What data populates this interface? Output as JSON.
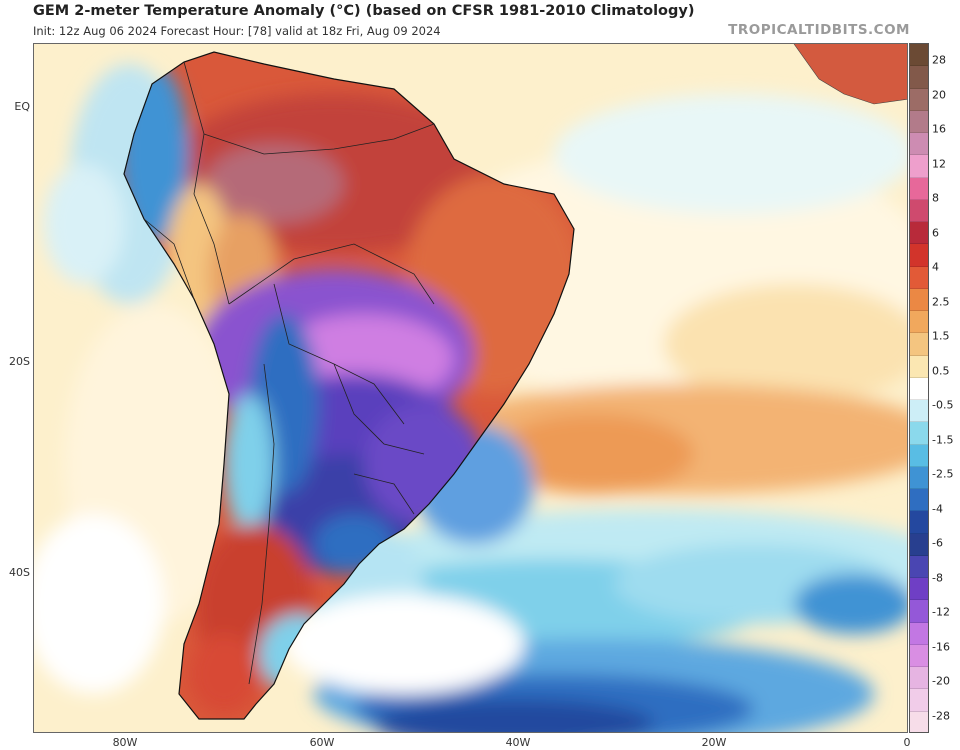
{
  "header": {
    "title": "GEM 2-meter Temperature Anomaly (°C) (based on CFSR 1981-2010 Climatology)",
    "subtitle": "Init: 12z Aug 06 2024   Forecast Hour: [78]   valid at 18z Fri, Aug 09 2024",
    "brand": "TROPICALTIDBITS.COM"
  },
  "axes": {
    "lat_labels": [
      "EQ",
      "20S",
      "40S"
    ],
    "lon_labels": [
      "80W",
      "60W",
      "40W",
      "20W",
      "0"
    ]
  },
  "colorbar": {
    "colors": [
      "#6b4a34",
      "#82594a",
      "#9c6c66",
      "#b27b8a",
      "#cd8cb2",
      "#ee9fcc",
      "#e7689a",
      "#cf4a6e",
      "#b82a3a",
      "#d2342b",
      "#e25a37",
      "#eb8844",
      "#f1a85d",
      "#f4c580",
      "#fbe7b2",
      "#ffffff",
      "#cdeef7",
      "#8bd9ec",
      "#59bde4",
      "#3f93d4",
      "#2f6ec1",
      "#24489f",
      "#283f8f",
      "#4a46b2",
      "#6f3fc5",
      "#9458d8",
      "#c277e3",
      "#d98ee3",
      "#e6b4e2",
      "#f1cce9",
      "#f7dde9"
    ],
    "labels": [
      "28",
      "20",
      "16",
      "12",
      "8",
      "6",
      "4",
      "2.5",
      "1.5",
      "0.5",
      "-0.5",
      "-1.5",
      "-2.5",
      "-4",
      "-6",
      "-8",
      "-12",
      "-16",
      "-20",
      "-28"
    ]
  }
}
